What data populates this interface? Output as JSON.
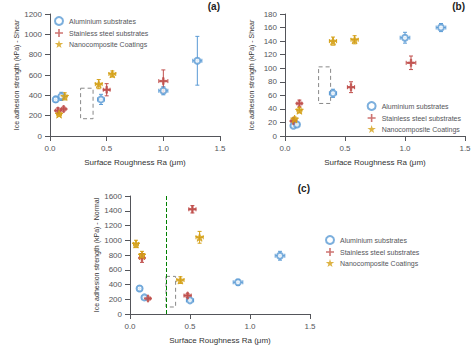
{
  "chart_data": [
    {
      "type": "scatter",
      "title": "(a)",
      "xlabel": "Surface Roughness Ra (μm)",
      "ylabel": "Ice adhesion strength (kPa) - Shear",
      "xlim": [
        0,
        1.5
      ],
      "ylim": [
        0,
        1200
      ],
      "xticks": [
        {
          "value": 0,
          "label": "0.0"
        },
        0.5,
        {
          "value": 1,
          "label": "1.0"
        },
        1.5
      ],
      "yticks": [
        0,
        200,
        400,
        600,
        800,
        1000,
        1200
      ],
      "grid": false,
      "legend": "upper left",
      "series": [
        {
          "name": "Aluminium substrates",
          "color": "#5B9BD5",
          "marker": "open_circle",
          "x": [
            0.05,
            0.1,
            0.45,
            1.0,
            1.3
          ],
          "y": [
            360,
            390,
            360,
            445,
            740
          ],
          "xerr": [
            0.02,
            0.02,
            0.03,
            0.04,
            0.04
          ],
          "yerr": [
            30,
            40,
            50,
            40,
            240
          ]
        },
        {
          "name": "Stainless steel substrates",
          "color": "#C0504D",
          "marker": "plus",
          "x": [
            0.07,
            0.12,
            0.5,
            1.0
          ],
          "y": [
            250,
            265,
            455,
            540
          ],
          "xerr": [
            0.02,
            0.02,
            0.03,
            0.04
          ],
          "yerr": [
            25,
            20,
            60,
            110
          ]
        },
        {
          "name": "Nanocomposite Coatings",
          "color": "#D4A017",
          "marker": "star",
          "x": [
            0.08,
            0.13,
            0.43,
            0.55
          ],
          "y": [
            215,
            390,
            510,
            610
          ],
          "xerr": [
            0.02,
            0.02,
            0.03,
            0.03
          ],
          "yerr": [
            20,
            35,
            45,
            30
          ]
        }
      ],
      "rectangles": [
        {
          "x0": 0.27,
          "y0": 170,
          "x1": 0.38,
          "y1": 470,
          "color": "#888888",
          "line_style": "dashed"
        }
      ]
    },
    {
      "type": "scatter",
      "title": "(b)",
      "xlabel": "Surface Roughness Ra (μm)",
      "ylabel": "Ice adhesion strength (kPa) - Shear",
      "xlim": [
        0,
        1.5
      ],
      "ylim": [
        0,
        180
      ],
      "xticks": [
        {
          "value": 0,
          "label": "0.0"
        },
        0.5,
        {
          "value": 1,
          "label": "1.0"
        },
        1.5
      ],
      "yticks": [
        0,
        20,
        40,
        60,
        80,
        100,
        120,
        140,
        160,
        180
      ],
      "grid": false,
      "legend": "lower right",
      "series": [
        {
          "name": "Aluminium substrates",
          "color": "#5B9BD5",
          "marker": "open_circle",
          "x": [
            0.07,
            0.1,
            0.4,
            1.0,
            1.3
          ],
          "y": [
            15,
            17,
            63,
            145,
            160
          ],
          "xerr": [
            0.02,
            0.02,
            0.03,
            0.04,
            0.04
          ],
          "yerr": [
            2,
            2,
            6,
            8,
            6
          ]
        },
        {
          "name": "Stainless steel substrates",
          "color": "#C0504D",
          "marker": "plus",
          "x": [
            0.07,
            0.12,
            0.55,
            1.05
          ],
          "y": [
            22,
            48,
            72,
            108
          ],
          "xerr": [
            0.02,
            0.02,
            0.03,
            0.04
          ],
          "yerr": [
            3,
            5,
            8,
            10
          ]
        },
        {
          "name": "Nanocomposite Coatings",
          "color": "#D4A017",
          "marker": "star",
          "x": [
            0.08,
            0.12,
            0.4,
            0.58
          ],
          "y": [
            25,
            38,
            140,
            142
          ],
          "xerr": [
            0.02,
            0.02,
            0.03,
            0.03
          ],
          "yerr": [
            3,
            4,
            6,
            6
          ]
        }
      ],
      "rectangles": [
        {
          "x0": 0.28,
          "y0": 48,
          "x1": 0.38,
          "y1": 102,
          "color": "#888888",
          "line_style": "dashed"
        }
      ]
    },
    {
      "type": "scatter",
      "title": "(c)",
      "xlabel": "Surface Roughness Ra (μm)",
      "ylabel": "Ice adhesion strength (kPa) - Normal",
      "xlim": [
        0,
        1.5
      ],
      "ylim": [
        0,
        1600
      ],
      "xticks": [
        {
          "value": 0,
          "label": "0.0"
        },
        0.5,
        {
          "value": 1,
          "label": "1.0"
        },
        1.5
      ],
      "yticks": [
        0,
        200,
        400,
        600,
        800,
        1000,
        1200,
        1400,
        1600
      ],
      "grid": false,
      "legend": "right",
      "series": [
        {
          "name": "Aluminium substrates",
          "color": "#5B9BD5",
          "marker": "open_circle",
          "x": [
            0.08,
            0.12,
            0.5,
            0.9,
            1.25
          ],
          "y": [
            345,
            225,
            185,
            430,
            790
          ],
          "xerr": [
            0.02,
            0.02,
            0.03,
            0.04,
            0.04
          ],
          "yerr": [
            35,
            20,
            20,
            40,
            60
          ]
        },
        {
          "name": "Stainless steel substrates",
          "color": "#C0504D",
          "marker": "plus",
          "x": [
            0.1,
            0.15,
            0.48,
            0.52
          ],
          "y": [
            760,
            210,
            250,
            1420
          ],
          "xerr": [
            0.02,
            0.02,
            0.03,
            0.03
          ],
          "yerr": [
            60,
            20,
            25,
            50
          ]
        },
        {
          "name": "Nanocomposite Coatings",
          "color": "#D4A017",
          "marker": "star",
          "x": [
            0.05,
            0.1,
            0.42,
            0.58
          ],
          "y": [
            950,
            800,
            460,
            1040
          ],
          "xerr": [
            0.02,
            0.02,
            0.03,
            0.03
          ],
          "yerr": [
            50,
            50,
            45,
            80
          ]
        }
      ],
      "rectangles": [
        {
          "x0": 0.3,
          "y0": 95,
          "x1": 0.38,
          "y1": 510,
          "color": "#888888",
          "line_style": "dashed"
        }
      ],
      "vlines": [
        {
          "x": 0.3,
          "color": "green",
          "line_style": "dashed"
        }
      ]
    }
  ]
}
